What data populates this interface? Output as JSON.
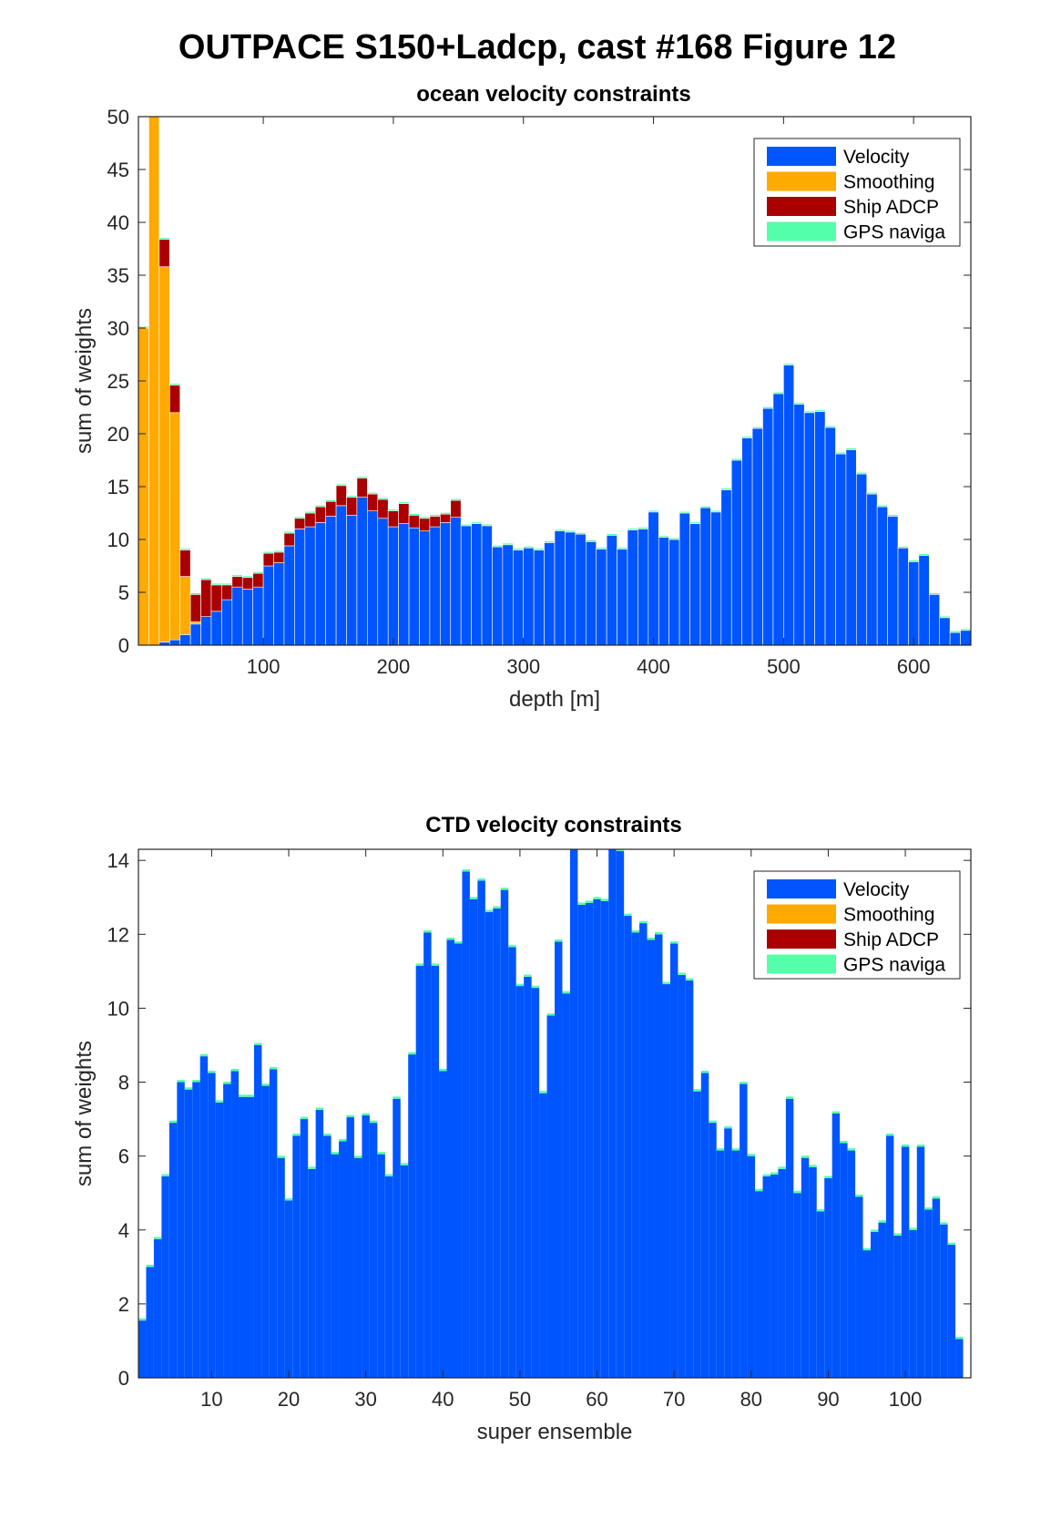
{
  "figure": {
    "title": "OUTPACE S150+Ladcp, cast #168  Figure 12"
  },
  "colors": {
    "velocity": "#0055FF",
    "smoothing": "#FFAA00",
    "ship_adcp": "#AA0000",
    "gps": "#55FFAA",
    "axis": "#262626"
  },
  "chart_data": [
    {
      "type": "bar",
      "stacked": true,
      "title": "ocean velocity constraints",
      "xlabel": "depth [m]",
      "ylabel": "sum of weights",
      "xlim": [
        4,
        644
      ],
      "ylim": [
        0,
        50
      ],
      "xticks": [
        100,
        200,
        300,
        400,
        500,
        600
      ],
      "yticks": [
        0,
        5,
        10,
        15,
        20,
        25,
        30,
        35,
        40,
        45,
        50
      ],
      "grid": false,
      "legend_position": "top-right",
      "bin_width": 8,
      "x": [
        8,
        16,
        24,
        32,
        40,
        48,
        56,
        64,
        72,
        80,
        88,
        96,
        104,
        112,
        120,
        128,
        136,
        144,
        152,
        160,
        168,
        176,
        184,
        192,
        200,
        208,
        216,
        224,
        232,
        240,
        248,
        256,
        264,
        272,
        280,
        288,
        296,
        304,
        312,
        320,
        328,
        336,
        344,
        352,
        360,
        368,
        376,
        384,
        392,
        400,
        408,
        416,
        424,
        432,
        440,
        448,
        456,
        464,
        472,
        480,
        488,
        496,
        504,
        512,
        520,
        528,
        536,
        544,
        552,
        560,
        568,
        576,
        584,
        592,
        600,
        608,
        616,
        624,
        632,
        640
      ],
      "series": [
        {
          "name": "Velocity",
          "color_key": "velocity",
          "values": [
            0,
            0,
            0.3,
            0.5,
            1,
            2,
            2.7,
            3.2,
            4.3,
            5.5,
            5.3,
            5.5,
            7.5,
            7.8,
            9.4,
            11,
            11.2,
            11.6,
            12.2,
            13.2,
            12.3,
            14,
            12.7,
            12,
            11.2,
            11.5,
            11.1,
            10.8,
            11.2,
            11.6,
            12.1,
            11.3,
            11.5,
            11.3,
            9.3,
            9.5,
            9,
            9.2,
            9,
            9.7,
            10.8,
            10.7,
            10.5,
            9.8,
            9.1,
            10.4,
            9.1,
            10.9,
            11,
            12.6,
            10.2,
            10,
            12.5,
            11.5,
            13,
            12.6,
            14.7,
            17.5,
            19.6,
            20.5,
            22.4,
            23.8,
            26.5,
            22.8,
            22,
            22.1,
            20.6,
            18.1,
            18.5,
            16.2,
            14.3,
            13.1,
            12.2,
            9.2,
            7.9,
            8.5,
            4.8,
            2.6,
            1.2,
            1.4
          ]
        },
        {
          "name": "Smoothing",
          "color_key": "smoothing",
          "values": [
            30,
            50,
            35.5,
            21.5,
            5.5,
            0.2,
            0,
            0,
            0,
            0,
            0,
            0,
            0,
            0,
            0,
            0,
            0,
            0,
            0,
            0,
            0,
            0,
            0,
            0,
            0,
            0,
            0,
            0,
            0,
            0,
            0,
            0,
            0,
            0,
            0,
            0,
            0,
            0,
            0,
            0,
            0,
            0,
            0,
            0,
            0,
            0,
            0,
            0,
            0,
            0,
            0,
            0,
            0,
            0,
            0,
            0,
            0,
            0,
            0,
            0,
            0,
            0,
            0,
            0,
            0,
            0,
            0,
            0,
            0,
            0,
            0,
            0,
            0,
            0,
            0,
            0,
            0,
            0,
            0,
            0
          ]
        },
        {
          "name": "Ship ADCP",
          "color_key": "ship_adcp",
          "values": [
            0,
            0,
            2.6,
            2.6,
            2.5,
            2.6,
            3.5,
            2.5,
            1.4,
            1,
            1.1,
            1.3,
            1.2,
            1,
            1.2,
            1,
            1.3,
            1.5,
            1.4,
            1.9,
            1.7,
            1.8,
            1.6,
            1.8,
            1.5,
            1.9,
            1.2,
            1.2,
            1,
            0.8,
            1.6,
            0,
            0,
            0,
            0,
            0,
            0,
            0,
            0,
            0,
            0,
            0,
            0,
            0,
            0,
            0,
            0,
            0,
            0,
            0,
            0,
            0,
            0,
            0,
            0,
            0,
            0,
            0,
            0,
            0,
            0,
            0,
            0,
            0,
            0,
            0,
            0,
            0,
            0,
            0,
            0,
            0,
            0,
            0,
            0,
            0,
            0,
            0,
            0,
            0
          ]
        },
        {
          "name": "GPS naviga",
          "color_key": "gps",
          "values": [
            0.15,
            0.15,
            0.15,
            0.15,
            0.15,
            0.15,
            0.15,
            0.15,
            0.15,
            0.15,
            0.15,
            0.15,
            0.15,
            0.15,
            0.15,
            0.15,
            0.15,
            0.15,
            0.15,
            0.15,
            0.15,
            0.15,
            0.15,
            0.15,
            0.15,
            0.15,
            0.15,
            0.15,
            0.15,
            0.15,
            0.15,
            0.15,
            0.15,
            0.15,
            0.15,
            0.15,
            0.15,
            0.15,
            0.15,
            0.15,
            0.15,
            0.15,
            0.15,
            0.15,
            0.15,
            0.15,
            0.15,
            0.15,
            0.15,
            0.15,
            0.15,
            0.15,
            0.15,
            0.15,
            0.15,
            0.15,
            0.15,
            0.15,
            0.15,
            0.15,
            0.15,
            0.15,
            0.15,
            0.15,
            0.15,
            0.15,
            0.15,
            0.15,
            0.15,
            0.15,
            0.15,
            0.15,
            0.15,
            0.15,
            0.15,
            0.15,
            0.15,
            0.15,
            0.15,
            0.15
          ]
        }
      ]
    },
    {
      "type": "bar",
      "stacked": true,
      "title": "CTD velocity constraints",
      "xlabel": "super ensemble",
      "ylabel": "sum of weights",
      "xlim": [
        0.5,
        108.5
      ],
      "ylim": [
        0,
        14.3
      ],
      "xticks": [
        10,
        20,
        30,
        40,
        50,
        60,
        70,
        80,
        90,
        100
      ],
      "yticks": [
        0,
        2,
        4,
        6,
        8,
        10,
        12,
        14
      ],
      "grid": false,
      "legend_position": "top-right",
      "bin_width": 1,
      "x_start": 1,
      "series": [
        {
          "name": "Velocity",
          "color_key": "velocity",
          "values": [
            1.55,
            3,
            3.75,
            5.45,
            6.9,
            8,
            7.8,
            8,
            8.7,
            8.25,
            7.45,
            7.95,
            8.3,
            7.6,
            7.6,
            9,
            7.9,
            8.35,
            5.95,
            4.8,
            6.55,
            7,
            5.65,
            7.25,
            6.55,
            6.05,
            6.4,
            7.05,
            5.95,
            7.1,
            6.9,
            6.05,
            5.45,
            7.55,
            5.75,
            8.75,
            11.15,
            12.05,
            11.15,
            8.3,
            11.85,
            11.75,
            13.7,
            12.95,
            13.45,
            12.6,
            12.7,
            13.2,
            11.65,
            10.6,
            10.85,
            10.55,
            7.7,
            9.8,
            11.8,
            10.4,
            14.3,
            12.8,
            12.85,
            12.95,
            12.9,
            14.3,
            14.25,
            12.5,
            12.05,
            12.3,
            11.85,
            12.0,
            10.65,
            11.75,
            10.9,
            10.75,
            7.75,
            8.25,
            6.9,
            6.15,
            6.75,
            6.15,
            7.95,
            6.0,
            5.05,
            5.45,
            5.5,
            5.65,
            7.55,
            5.0,
            5.95,
            5.7,
            4.5,
            5.4,
            7.15,
            6.35,
            6.15,
            4.9,
            3.45,
            3.95,
            4.2,
            6.55,
            3.85,
            6.25,
            4.0,
            6.25,
            4.55,
            4.85,
            4.15,
            3.6,
            1.05
          ]
        },
        {
          "name": "Smoothing",
          "color_key": "smoothing",
          "values": []
        },
        {
          "name": "Ship ADCP",
          "color_key": "ship_adcp",
          "values": []
        },
        {
          "name": "GPS naviga",
          "color_key": "gps",
          "constant_value": 0.06
        }
      ]
    }
  ]
}
